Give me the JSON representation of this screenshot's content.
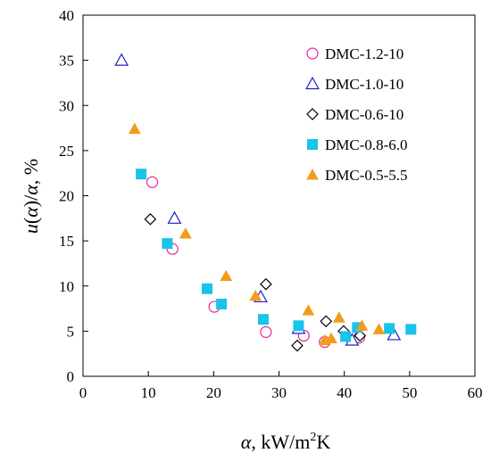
{
  "chart_data": {
    "type": "scatter",
    "title": "",
    "xlabel": "α, kW/m²K",
    "ylabel": "u(α)/α, %",
    "xlim": [
      0,
      60
    ],
    "ylim": [
      0,
      40
    ],
    "x_ticks": [
      0,
      10,
      20,
      30,
      40,
      50,
      60
    ],
    "y_ticks": [
      0,
      5,
      10,
      15,
      20,
      25,
      30,
      35,
      40
    ],
    "grid": false,
    "legend_position": "top-right",
    "series": [
      {
        "name": "DMC-1.2-10",
        "marker": "open-circle",
        "color": "#e6259e",
        "points": [
          [
            10.6,
            21.5
          ],
          [
            13.7,
            14.1
          ],
          [
            20.1,
            7.7
          ],
          [
            28.0,
            4.9
          ],
          [
            33.8,
            4.5
          ],
          [
            37.0,
            3.8
          ],
          [
            42.3,
            4.3
          ]
        ]
      },
      {
        "name": "DMC-1.0-10",
        "marker": "open-triangle",
        "color": "#1f1fc8",
        "points": [
          [
            5.9,
            35.0
          ],
          [
            14.0,
            17.5
          ],
          [
            27.2,
            8.8
          ],
          [
            33.0,
            5.3
          ],
          [
            41.2,
            4.0
          ],
          [
            47.6,
            4.6
          ]
        ]
      },
      {
        "name": "DMC-0.6-10",
        "marker": "open-diamond",
        "color": "#000000",
        "points": [
          [
            10.3,
            17.4
          ],
          [
            28.0,
            10.2
          ],
          [
            32.8,
            3.4
          ],
          [
            37.2,
            6.1
          ],
          [
            39.9,
            5.0
          ],
          [
            42.4,
            4.5
          ]
        ]
      },
      {
        "name": "DMC-0.8-6.0",
        "marker": "filled-square",
        "color": "#19c3ea",
        "points": [
          [
            8.9,
            22.4
          ],
          [
            12.9,
            14.7
          ],
          [
            19.0,
            9.7
          ],
          [
            21.2,
            8.0
          ],
          [
            27.6,
            6.3
          ],
          [
            33.0,
            5.6
          ],
          [
            40.2,
            4.4
          ],
          [
            42.0,
            5.4
          ],
          [
            46.9,
            5.3
          ],
          [
            50.2,
            5.2
          ]
        ]
      },
      {
        "name": "DMC-0.5-5.5",
        "marker": "filled-triangle",
        "color": "#f29b1c",
        "points": [
          [
            7.9,
            27.4
          ],
          [
            15.7,
            15.8
          ],
          [
            21.9,
            11.1
          ],
          [
            26.4,
            8.9
          ],
          [
            34.5,
            7.3
          ],
          [
            37.0,
            4.0
          ],
          [
            38.0,
            4.2
          ],
          [
            39.2,
            6.5
          ],
          [
            42.7,
            5.6
          ],
          [
            45.3,
            5.2
          ]
        ]
      }
    ]
  }
}
